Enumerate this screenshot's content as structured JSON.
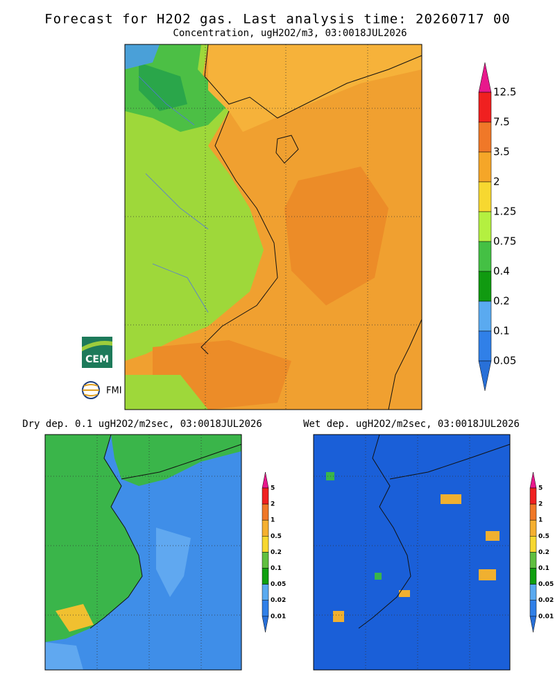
{
  "header": {
    "title": "Forecast for H2O2 gas. Last analysis time: 20260717 00",
    "subtitle": "Concentration, ugH2O2/m3, 03:0018JUL2026"
  },
  "main_legend": {
    "labels": [
      "12.5",
      "7.5",
      "3.5",
      "2",
      "1.25",
      "0.75",
      "0.4",
      "0.2",
      "0.1",
      "0.05"
    ]
  },
  "panels": [
    {
      "title": "Dry dep. 0.1 ugH2O2/m2sec, 03:0018JUL2026",
      "legend": [
        "5",
        "2",
        "1",
        "0.5",
        "0.2",
        "0.1",
        "0.05",
        "0.02",
        "0.01"
      ]
    },
    {
      "title": "Wet dep. ugH2O2/m2sec, 03:0018JUL2026",
      "legend": [
        "5",
        "2",
        "1",
        "0.5",
        "0.2",
        "0.1",
        "0.05",
        "0.02",
        "0.01"
      ]
    }
  ],
  "logos": [
    "CEM",
    "FMI"
  ]
}
